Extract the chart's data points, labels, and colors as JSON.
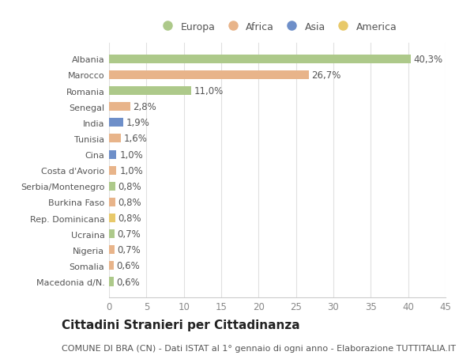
{
  "categories": [
    "Albania",
    "Marocco",
    "Romania",
    "Senegal",
    "India",
    "Tunisia",
    "Cina",
    "Costa d'Avorio",
    "Serbia/Montenegro",
    "Burkina Faso",
    "Rep. Dominicana",
    "Ucraina",
    "Nigeria",
    "Somalia",
    "Macedonia d/N."
  ],
  "values": [
    40.3,
    26.7,
    11.0,
    2.8,
    1.9,
    1.6,
    1.0,
    1.0,
    0.8,
    0.8,
    0.8,
    0.7,
    0.7,
    0.6,
    0.6
  ],
  "labels": [
    "40,3%",
    "26,7%",
    "11,0%",
    "2,8%",
    "1,9%",
    "1,6%",
    "1,0%",
    "1,0%",
    "0,8%",
    "0,8%",
    "0,8%",
    "0,7%",
    "0,7%",
    "0,6%",
    "0,6%"
  ],
  "continents": [
    "Europa",
    "Africa",
    "Europa",
    "Africa",
    "Asia",
    "Africa",
    "Asia",
    "Africa",
    "Europa",
    "Africa",
    "America",
    "Europa",
    "Africa",
    "Africa",
    "Europa"
  ],
  "continent_colors": {
    "Europa": "#adc98a",
    "Africa": "#e8b48a",
    "Asia": "#6e8fc9",
    "America": "#e8c96a"
  },
  "legend_order": [
    "Europa",
    "Africa",
    "Asia",
    "America"
  ],
  "title": "Cittadini Stranieri per Cittadinanza",
  "subtitle": "COMUNE DI BRA (CN) - Dati ISTAT al 1° gennaio di ogni anno - Elaborazione TUTTITALIA.IT",
  "xlim": [
    0,
    45
  ],
  "xticks": [
    0,
    5,
    10,
    15,
    20,
    25,
    30,
    35,
    40,
    45
  ],
  "bg_color": "#ffffff",
  "plot_bg_color": "#ffffff",
  "grid_color": "#e0e0e0",
  "bar_height": 0.55,
  "label_fontsize": 8.5,
  "tick_fontsize": 8.5,
  "ytick_fontsize": 8.0,
  "title_fontsize": 11,
  "subtitle_fontsize": 8
}
